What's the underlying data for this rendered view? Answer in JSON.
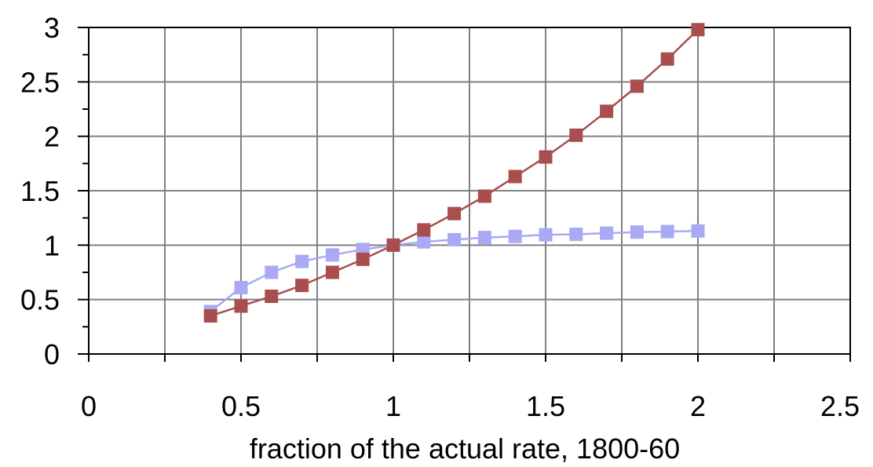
{
  "chart_data": {
    "type": "line",
    "title": "",
    "xlabel": "fraction of the actual rate, 1800-60",
    "ylabel": "",
    "xlim": [
      0,
      2.5
    ],
    "ylim": [
      0,
      3
    ],
    "xticks": [
      0,
      0.5,
      1,
      1.5,
      2,
      2.5
    ],
    "xtick_labels": [
      "0",
      "0.5",
      "1",
      "1.5",
      "2",
      "2.5"
    ],
    "yticks": [
      0,
      0.5,
      1,
      1.5,
      2,
      2.5,
      3
    ],
    "ytick_labels": [
      "0",
      "0.5",
      "1",
      "1.5",
      "2",
      "2.5",
      "3"
    ],
    "grid": true,
    "legend": "none",
    "x": [
      0.4,
      0.5,
      0.6,
      0.7,
      0.8,
      0.9,
      1.0,
      1.1,
      1.2,
      1.3,
      1.4,
      1.5,
      1.6,
      1.7,
      1.8,
      1.9,
      2.0
    ],
    "series": [
      {
        "color": "#a9a9f5",
        "values": [
          0.39,
          0.61,
          0.75,
          0.85,
          0.91,
          0.96,
          1.0,
          1.03,
          1.05,
          1.07,
          1.08,
          1.095,
          1.1,
          1.11,
          1.12,
          1.125,
          1.13
        ]
      },
      {
        "color": "#a84e4e",
        "values": [
          0.35,
          0.44,
          0.53,
          0.63,
          0.75,
          0.87,
          1.0,
          1.14,
          1.29,
          1.45,
          1.63,
          1.81,
          2.01,
          2.23,
          2.46,
          2.71,
          2.98
        ]
      }
    ]
  }
}
